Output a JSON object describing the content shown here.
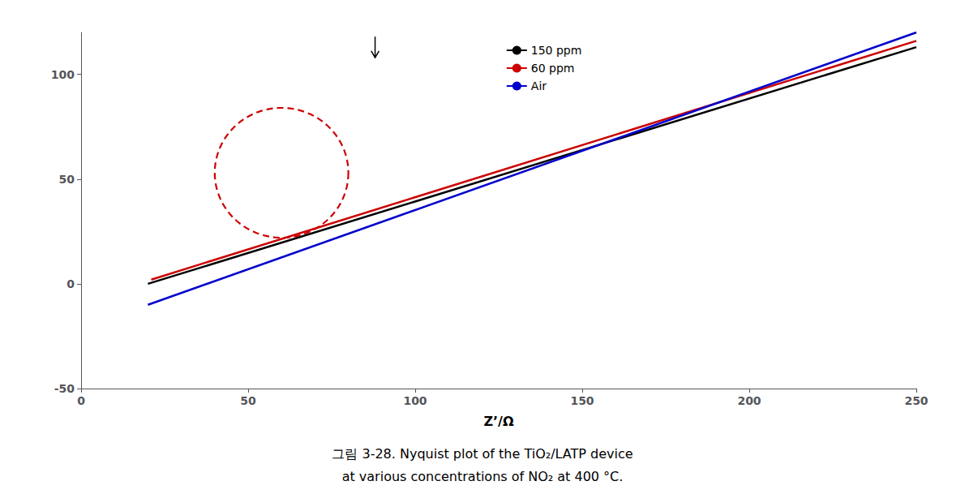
{
  "chart_data": {
    "type": "line",
    "xlabel": "Z’/Ω",
    "xlim": [
      0,
      250
    ],
    "ylim": [
      -50,
      120
    ],
    "xticks": [
      0,
      50,
      100,
      150,
      200,
      250
    ],
    "yticks": [
      -50,
      0,
      50,
      100
    ],
    "grid": false,
    "legend": "top",
    "series": [
      {
        "name": "150 ppm",
        "color": "#000000",
        "x": [
          20,
          250
        ],
        "values": [
          0,
          113
        ]
      },
      {
        "name": "60 ppm",
        "color": "#cc0000",
        "x": [
          21,
          250
        ],
        "values": [
          2,
          116
        ]
      },
      {
        "name": "Air",
        "color": "#0000cc",
        "x": [
          20,
          250
        ],
        "values": [
          -10,
          120
        ]
      }
    ],
    "ellipse": {
      "x": 60,
      "y": 53,
      "width": 40,
      "height": 62,
      "color": "#cc0000",
      "line_style": "dashed"
    },
    "arrow": {
      "x": 88,
      "y_tail": 118,
      "y_head": 108,
      "color": "#000000"
    },
    "annotations": [
      "그림 3-28. Nyquist plot of the TiO₂/LATP device",
      "at various concentrations of NO₂ at 400 °C."
    ]
  }
}
